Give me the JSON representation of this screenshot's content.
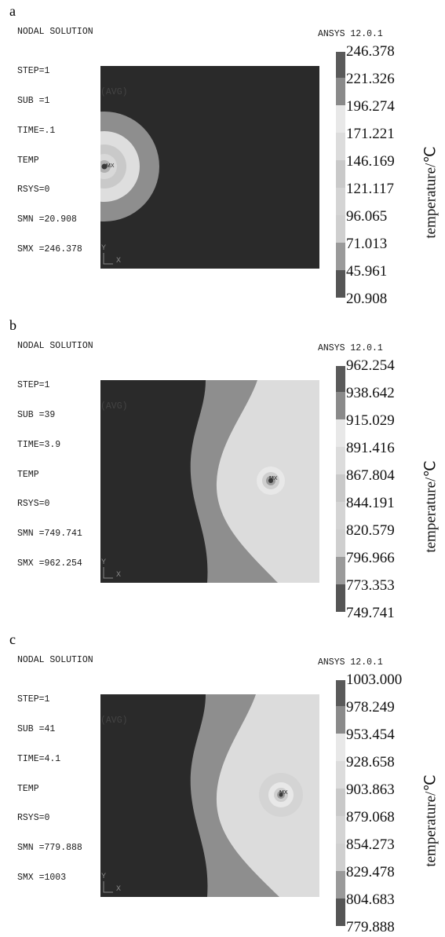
{
  "panels": [
    {
      "letter": "a",
      "title": "NODAL SOLUTION",
      "info": [
        "STEP=1",
        "SUB =1",
        "TIME=.1",
        "TEMP",
        "RSYS=0",
        "SMN =20.908",
        "SMX =246.378"
      ],
      "avg": "(AVG)",
      "software": "ANSYS 12.0.1",
      "mx_label": "MX",
      "axis_y": "Y",
      "axis_x": "X",
      "colorbar_ticks": [
        "246.378",
        "221.326",
        "196.274",
        "171.221",
        "146.169",
        "121.117",
        "96.065",
        "71.013",
        "45.961",
        "20.908"
      ],
      "colorbar_colors": [
        "#5a5a5a",
        "#8a8a8a",
        "#e8e8e8",
        "#dcdcdc",
        "#c9c9c9",
        "#d4d4d4",
        "#cfcfcf",
        "#9a9a9a",
        "#555555",
        "#262626"
      ],
      "ylabel": "temperature/℃"
    },
    {
      "letter": "b",
      "title": "NODAL SOLUTION",
      "info": [
        "STEP=1",
        "SUB =39",
        "TIME=3.9",
        "TEMP",
        "RSYS=0",
        "SMN =749.741",
        "SMX =962.254"
      ],
      "avg": "(AVG)",
      "software": "ANSYS 12.0.1",
      "mx_label": "MX",
      "axis_y": "Y",
      "axis_x": "X",
      "colorbar_ticks": [
        "962.254",
        "938.642",
        "915.029",
        "891.416",
        "867.804",
        "844.191",
        "820.579",
        "796.966",
        "773.353",
        "749.741"
      ],
      "colorbar_colors": [
        "#5a5a5a",
        "#8a8a8a",
        "#e8e8e8",
        "#dcdcdc",
        "#c9c9c9",
        "#d4d4d4",
        "#cfcfcf",
        "#9a9a9a",
        "#555555",
        "#262626"
      ],
      "ylabel": "temperature/℃"
    },
    {
      "letter": "c",
      "title": "NODAL SOLUTION",
      "info": [
        "STEP=1",
        "SUB =41",
        "TIME=4.1",
        "TEMP",
        "RSYS=0",
        "SMN =779.888",
        "SMX =1003"
      ],
      "avg": "(AVG)",
      "software": "ANSYS 12.0.1",
      "mx_label": "MX",
      "axis_y": "Y",
      "axis_x": "X",
      "colorbar_ticks": [
        "1003.000",
        "978.249",
        "953.454",
        "928.658",
        "903.863",
        "879.068",
        "854.273",
        "829.478",
        "804.683",
        "779.888"
      ],
      "colorbar_colors": [
        "#5a5a5a",
        "#8a8a8a",
        "#e8e8e8",
        "#dcdcdc",
        "#c9c9c9",
        "#d4d4d4",
        "#cfcfcf",
        "#9a9a9a",
        "#555555",
        "#262626"
      ],
      "ylabel": "temperature/℃"
    }
  ]
}
